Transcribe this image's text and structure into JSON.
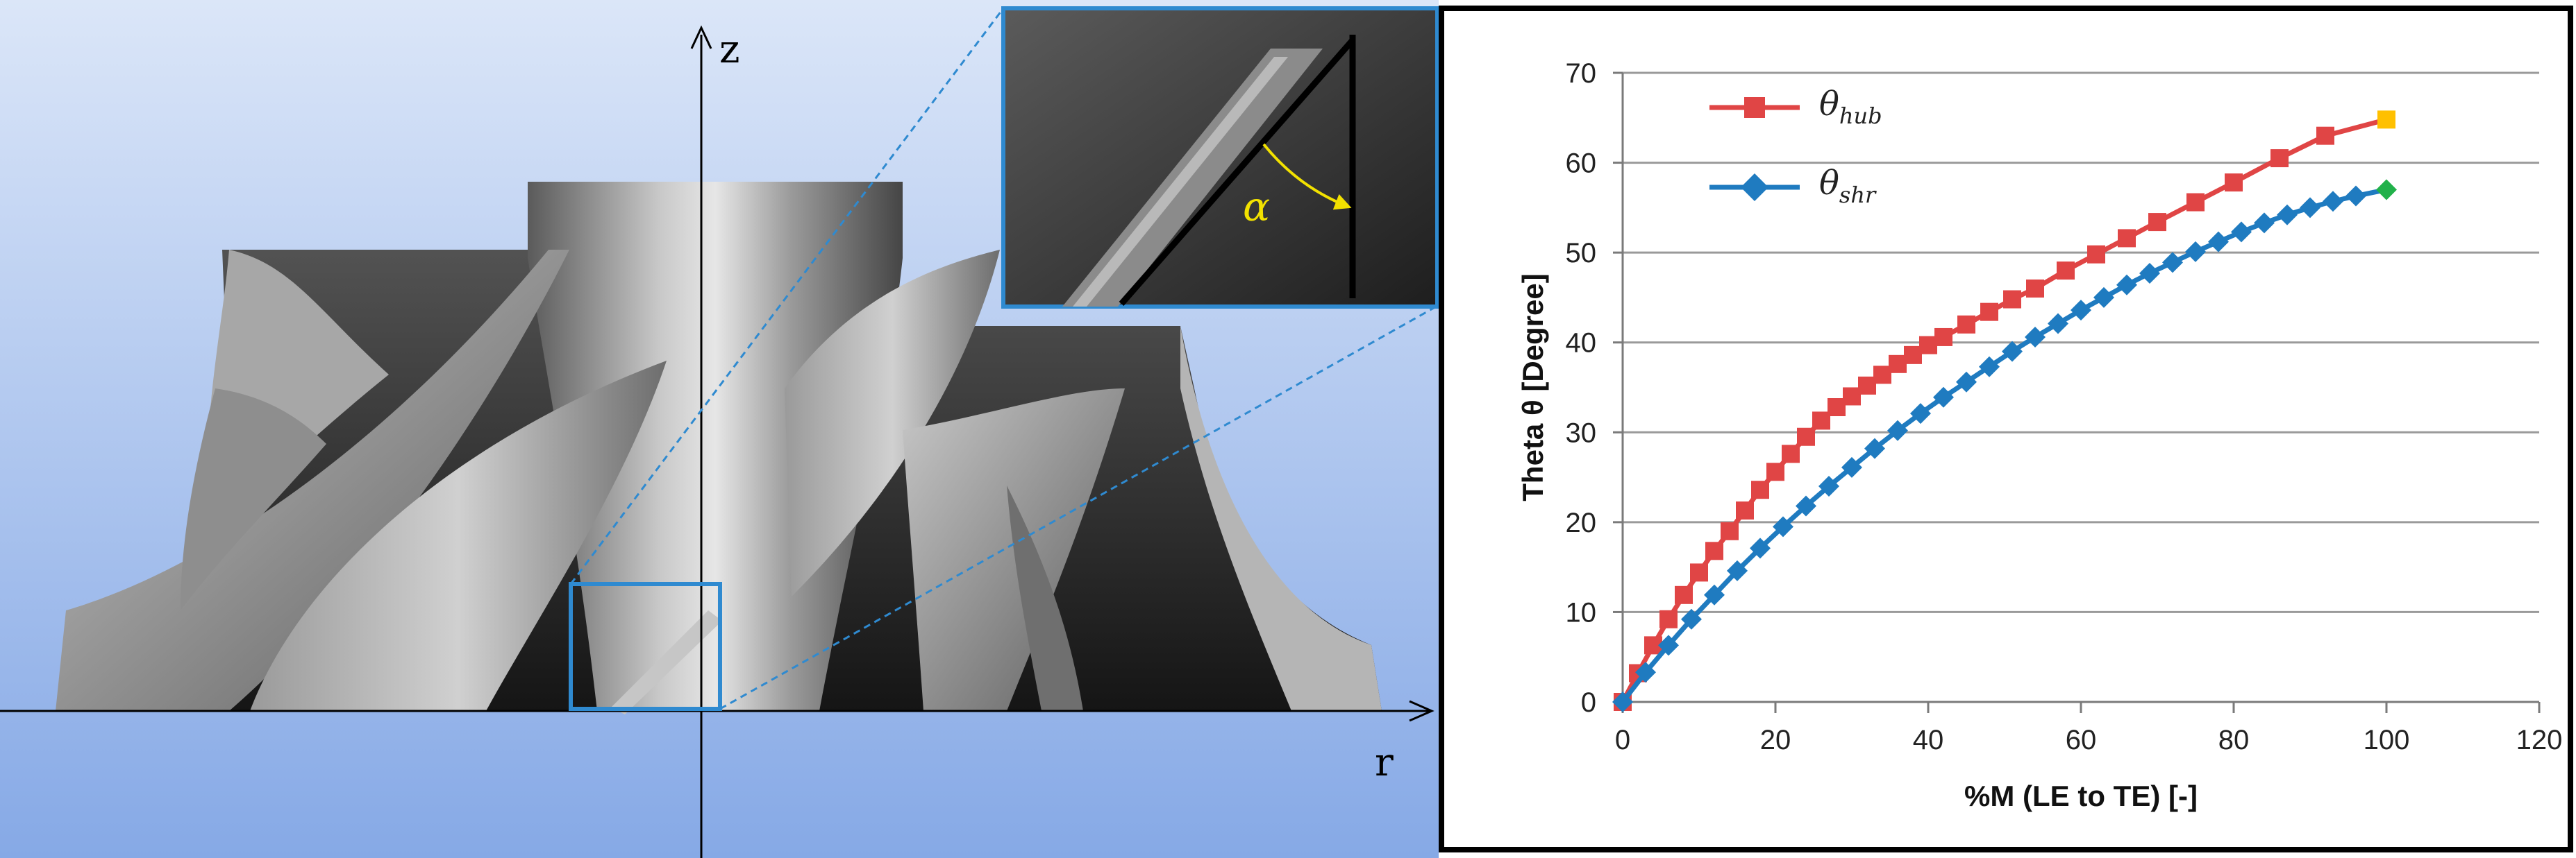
{
  "figure": {
    "left_axis_z_label": "z",
    "left_axis_r_label": "r",
    "angle_label": "α",
    "colors": {
      "background_top": "#dbe6f8",
      "background_bottom": "#86a9e6",
      "zoom_box": "#2f8ad0",
      "angle_arrow": "#f2e100"
    }
  },
  "chart_data": {
    "type": "line",
    "title": "",
    "xlabel": "%M (LE to TE) [-]",
    "ylabel": "Theta θ [Degree]",
    "xlim": [
      0,
      120
    ],
    "ylim": [
      0,
      70
    ],
    "xticks": [
      0,
      20,
      40,
      60,
      80,
      100,
      120
    ],
    "yticks": [
      0,
      10,
      20,
      30,
      40,
      50,
      60,
      70
    ],
    "grid": "horizontal",
    "legend_position": "top-left",
    "series": [
      {
        "name": "θ_hub",
        "name_base": "θ",
        "name_sub": "hub",
        "color": "#e04545",
        "marker": "square",
        "end_marker_color": "#ffc000",
        "x": [
          0,
          2,
          4,
          6,
          8,
          10,
          12,
          14,
          16,
          18,
          20,
          22,
          24,
          26,
          28,
          30,
          32,
          34,
          36,
          38,
          40,
          42,
          45,
          48,
          51,
          54,
          58,
          62,
          66,
          70,
          75,
          80,
          86,
          92,
          100
        ],
        "y": [
          0,
          3.2,
          6.3,
          9.2,
          11.9,
          14.4,
          16.8,
          19.0,
          21.3,
          23.6,
          25.6,
          27.6,
          29.5,
          31.3,
          32.8,
          34.0,
          35.2,
          36.4,
          37.6,
          38.6,
          39.7,
          40.6,
          42.0,
          43.4,
          44.8,
          46.0,
          48.0,
          49.8,
          51.6,
          53.4,
          55.6,
          57.8,
          60.5,
          63.0,
          64.8
        ]
      },
      {
        "name": "θ_shr",
        "name_base": "θ",
        "name_sub": "shr",
        "color": "#1f7bc0",
        "marker": "diamond",
        "end_marker_color": "#21b14a",
        "x": [
          0,
          3,
          6,
          9,
          12,
          15,
          18,
          21,
          24,
          27,
          30,
          33,
          36,
          39,
          42,
          45,
          48,
          51,
          54,
          57,
          60,
          63,
          66,
          69,
          72,
          75,
          78,
          81,
          84,
          87,
          90,
          93,
          96,
          100
        ],
        "y": [
          0,
          3.3,
          6.3,
          9.2,
          11.9,
          14.6,
          17.1,
          19.5,
          21.8,
          24.0,
          26.1,
          28.2,
          30.2,
          32.1,
          33.9,
          35.6,
          37.3,
          39.0,
          40.6,
          42.1,
          43.6,
          45.0,
          46.4,
          47.7,
          48.9,
          50.1,
          51.2,
          52.3,
          53.3,
          54.2,
          55.0,
          55.7,
          56.3,
          57.0
        ]
      }
    ]
  }
}
